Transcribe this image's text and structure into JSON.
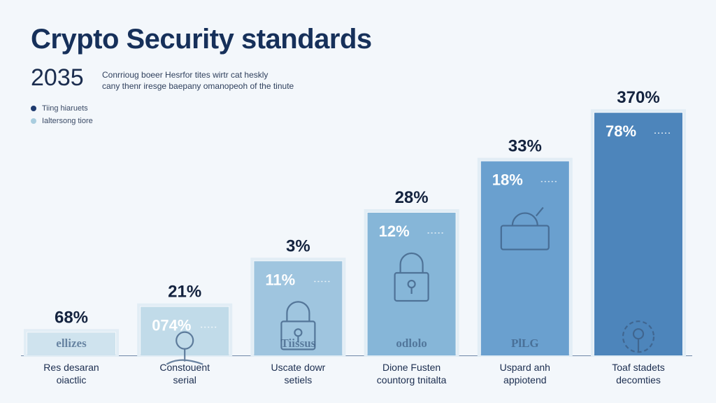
{
  "header": {
    "title": "Crypto Security standards",
    "year": "2035",
    "subtitle_line1": "Conrrioug boeer Hesrfor tites wirtr cat heskly",
    "subtitle_line2": "cany thenr iresge baepany omanopeoh of the tinute"
  },
  "legend": [
    {
      "label": "Tiing hiaruets",
      "color": "#1e3a6e"
    },
    {
      "label": "Ialtersong tiore",
      "color": "#a9cddf"
    }
  ],
  "chart_data": {
    "type": "bar",
    "categories": [
      [
        "Res desaran",
        "oiactlic"
      ],
      [
        "Constouent",
        "serial"
      ],
      [
        "Uscate dowr",
        "setiels"
      ],
      [
        "Dione Fusten",
        "countorg tnitalta"
      ],
      [
        "Uspard anh",
        "appiotend"
      ],
      [
        "Toaf stadets",
        "decomties"
      ]
    ],
    "values": [
      8,
      17,
      33,
      50,
      68,
      85
    ],
    "top_labels": [
      "68%",
      "21%",
      "3%",
      "28%",
      "33%",
      "370%"
    ],
    "inner_labels": [
      "",
      "074%",
      "11%",
      "12%",
      "18%",
      "78%"
    ],
    "emblem_labels": [
      "ellizes",
      "",
      "Tiissus",
      "odlolo",
      "PlLG",
      ""
    ],
    "icons": [
      "",
      "hand-key-icon",
      "padlock-icon",
      "padlock-icon",
      "lock-badge-icon",
      "key-gear-icon"
    ],
    "colors": [
      "#cfe3ee",
      "#c1dbe9",
      "#9fc5df",
      "#86b6d8",
      "#6aa0cf",
      "#4d85bb"
    ],
    "ylim": [
      0,
      100
    ],
    "grid": false
  }
}
